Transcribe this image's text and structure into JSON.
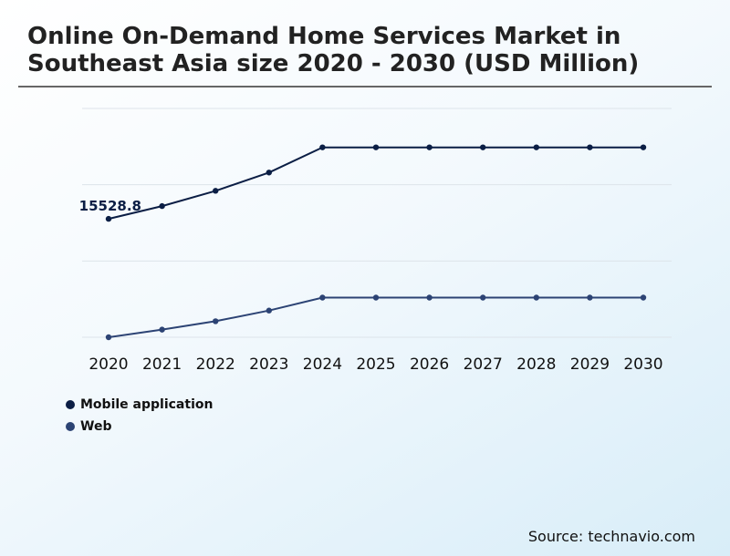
{
  "source": "Source: technavio.com",
  "chart_data": {
    "type": "line",
    "title": "Online On-Demand Home Services Market in Southeast Asia size 2020 - 2030 (USD Million)",
    "xlabel": "",
    "ylabel": "",
    "grid": true,
    "legend": "bottom-left",
    "categories": [
      "2020",
      "2021",
      "2022",
      "2023",
      "2024",
      "2025",
      "2026",
      "2027",
      "2028",
      "2029",
      "2030"
    ],
    "ylim": [
      0,
      30000
    ],
    "series": [
      {
        "name": "Mobile application",
        "color": "#0b1e45",
        "values": [
          15528.8,
          17200,
          19200,
          21600,
          24900,
          24900,
          24900,
          24900,
          24900,
          24900,
          24900
        ],
        "labels": [
          "15528.8",
          "",
          "",
          "",
          "",
          "",
          "",
          "",
          "",
          "",
          ""
        ]
      },
      {
        "name": "Web",
        "color": "#2c4374",
        "values": [
          0,
          1000,
          2100,
          3500,
          5200,
          5200,
          5200,
          5200,
          5200,
          5200,
          5200
        ],
        "labels": [
          "",
          "",
          "",
          "",
          "",
          "",
          "",
          "",
          "",
          "",
          ""
        ]
      }
    ]
  }
}
